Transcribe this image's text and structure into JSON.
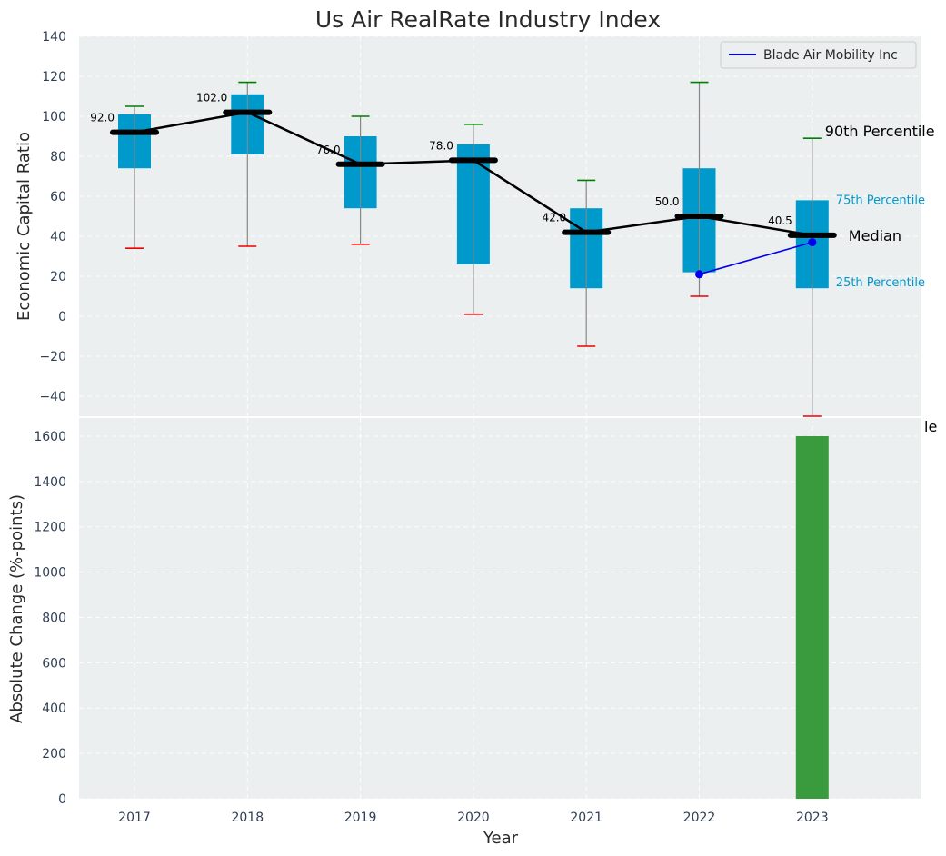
{
  "chart_data": [
    {
      "type": "box",
      "title": "Us Air RealRate Industry Index",
      "xlabel": "",
      "ylabel": "Economic Capital Ratio",
      "ylim": [
        -50,
        140
      ],
      "yticks": [
        -40,
        -20,
        0,
        20,
        40,
        60,
        80,
        100,
        120,
        140
      ],
      "categories": [
        "2017",
        "2018",
        "2019",
        "2020",
        "2021",
        "2022",
        "2023"
      ],
      "grid": true,
      "legend_position": "top-right",
      "boxes": [
        {
          "year": "2017",
          "p10": 34,
          "q1": 74,
          "median": 92,
          "q3": 101,
          "p90": 105,
          "median_label": "92.0"
        },
        {
          "year": "2018",
          "p10": 35,
          "q1": 81,
          "median": 102,
          "q3": 111,
          "p90": 117,
          "median_label": "102.0"
        },
        {
          "year": "2019",
          "p10": 36,
          "q1": 54,
          "median": 76,
          "q3": 90,
          "p90": 100,
          "median_label": "76.0"
        },
        {
          "year": "2020",
          "p10": 1,
          "q1": 26,
          "median": 78,
          "q3": 86,
          "p90": 96,
          "median_label": "78.0"
        },
        {
          "year": "2021",
          "p10": -15,
          "q1": 14,
          "median": 42,
          "q3": 54,
          "p90": 68,
          "median_label": "42.0"
        },
        {
          "year": "2022",
          "p10": 10,
          "q1": 22,
          "median": 50,
          "q3": 74,
          "p90": 117,
          "median_label": "50.0"
        },
        {
          "year": "2023",
          "p10": -50,
          "q1": 14,
          "median": 40.5,
          "q3": 58,
          "p90": 89,
          "median_label": "40.5"
        }
      ],
      "series": [
        {
          "name": "Blade Air Mobility Inc",
          "points": [
            {
              "x": "2022",
              "y": 21
            },
            {
              "x": "2023",
              "y": 37
            }
          ],
          "color": "#0000ee"
        }
      ],
      "annotations": {
        "p90": "90th Percentile",
        "p75": "75th Percentile",
        "median": "Median",
        "p25": "25th Percentile",
        "p10_clipped": "le"
      },
      "colors": {
        "box": "#0099cc",
        "median_line": "#000000",
        "p90_cap": "#008000",
        "p10_cap": "#ee0000",
        "whisker": "#888888",
        "series": "#0000ee",
        "axes_bg": "#ebeff0"
      }
    },
    {
      "type": "bar",
      "title": "",
      "xlabel": "Year",
      "ylabel": "Absolute Change (%-points)",
      "ylim": [
        0,
        1680
      ],
      "yticks": [
        0,
        200,
        400,
        600,
        800,
        1000,
        1200,
        1400,
        1600
      ],
      "categories": [
        "2017",
        "2018",
        "2019",
        "2020",
        "2021",
        "2022",
        "2023"
      ],
      "values": [
        0,
        0,
        0,
        0,
        0,
        0,
        1600
      ],
      "grid": true,
      "colors": {
        "bar": "#3a9b3e"
      }
    }
  ]
}
